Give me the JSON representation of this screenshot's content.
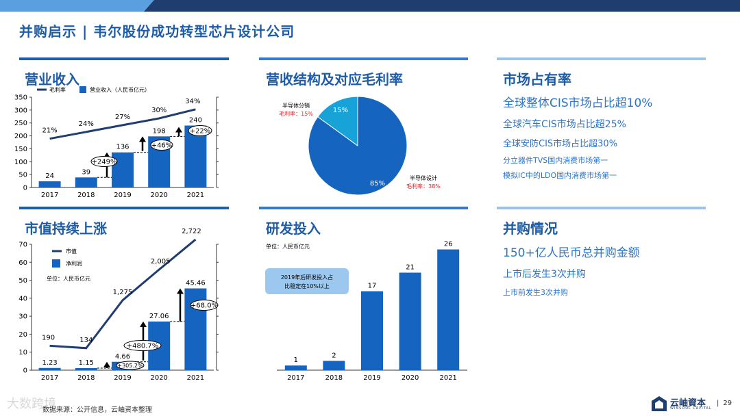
{
  "header": {
    "title": "并购启示 | 韦尔股份成功转型芯片设计公司"
  },
  "panels": {
    "revenue": {
      "title": "营业收入"
    },
    "structure": {
      "title": "营收结构及对应毛利率"
    },
    "share": {
      "title": "市场占有率"
    },
    "mcap": {
      "title": "市值持续上涨"
    },
    "rnd": {
      "title": "研发投入"
    },
    "mna": {
      "title": "并购情况"
    }
  },
  "market_share": {
    "lines": [
      "全球整体CIS市场占比超10%",
      "全球汽车CIS市场占比超25%",
      "全球安防CIS市场占比超30%",
      "分立器件TVS国内消费市场第一",
      "模拟IC中的LDO国内消费市场第一"
    ]
  },
  "mna": {
    "lines": [
      "150+亿人民币总并购金额",
      "上市后发生3次并购",
      "上市前发生3次并购"
    ]
  },
  "footer": {
    "source": "数据来源：公开信息，云岫资本整理",
    "watermark": "大数跨境",
    "page": "29"
  },
  "logo": {
    "name": "云岫資本",
    "sub": "WINSOUL CAPITAL"
  },
  "colors": {
    "bar": "#1565c0",
    "line": "#1f3d6e",
    "title": "#1f5ca8",
    "red": "#e02020",
    "accent": "#2c74c8"
  },
  "chart_data": [
    {
      "id": "revenue",
      "type": "bar",
      "categories": [
        "2017",
        "2018",
        "2019",
        "2020",
        "2021"
      ],
      "series": [
        {
          "name": "营业收入（人民币亿元）",
          "values": [
            24,
            39,
            136,
            198,
            240
          ]
        },
        {
          "name": "毛利率",
          "type": "line",
          "values": [
            21,
            24,
            27,
            30,
            34
          ],
          "labels": [
            "21%",
            "24%",
            "27%",
            "30%",
            "34%"
          ]
        }
      ],
      "ylim": [
        0,
        350
      ],
      "yticks": [
        0,
        50,
        100,
        150,
        200,
        250,
        300,
        350
      ],
      "growth_labels": [
        "+249%",
        "+46%",
        "+22%"
      ],
      "legend": "top-left"
    },
    {
      "id": "structure",
      "type": "pie",
      "slices": [
        {
          "name": "半导体设计",
          "value": 85,
          "label": "85%",
          "margin_label": "毛利率：",
          "margin_value": "38%"
        },
        {
          "name": "半导体分销",
          "value": 15,
          "label": "15%",
          "margin_label": "毛利率：",
          "margin_value": "15%"
        }
      ]
    },
    {
      "id": "mcap",
      "type": "bar",
      "categories": [
        "2017",
        "2018",
        "2019",
        "2020",
        "2021"
      ],
      "unit": "单位：人民币亿元",
      "series": [
        {
          "name": "净利润",
          "values": [
            1.23,
            1.15,
            4.66,
            27.06,
            45.46
          ],
          "labels": [
            "1.23",
            "1.15",
            "4.66",
            "27.06",
            "45.46"
          ]
        },
        {
          "name": "市值",
          "type": "line",
          "values": [
            190,
            134,
            1275,
            2005,
            2722
          ],
          "labels": [
            "190",
            "134",
            "1,275",
            "2,005",
            "2,722"
          ]
        }
      ],
      "ylim": [
        0,
        70
      ],
      "yticks": [
        0,
        10,
        20,
        30,
        40,
        50,
        60,
        70
      ],
      "growth_labels": [
        "+305.2%",
        "+480.7%",
        "+68.0%"
      ],
      "legend": "top-left"
    },
    {
      "id": "rnd",
      "type": "bar",
      "categories": [
        "2017",
        "2018",
        "2019",
        "2020",
        "2021"
      ],
      "unit": "单位：人民币亿元",
      "values": [
        1,
        2,
        17,
        21,
        26
      ],
      "callout": "2019年后研发投入占比稳定在10%以上"
    }
  ]
}
